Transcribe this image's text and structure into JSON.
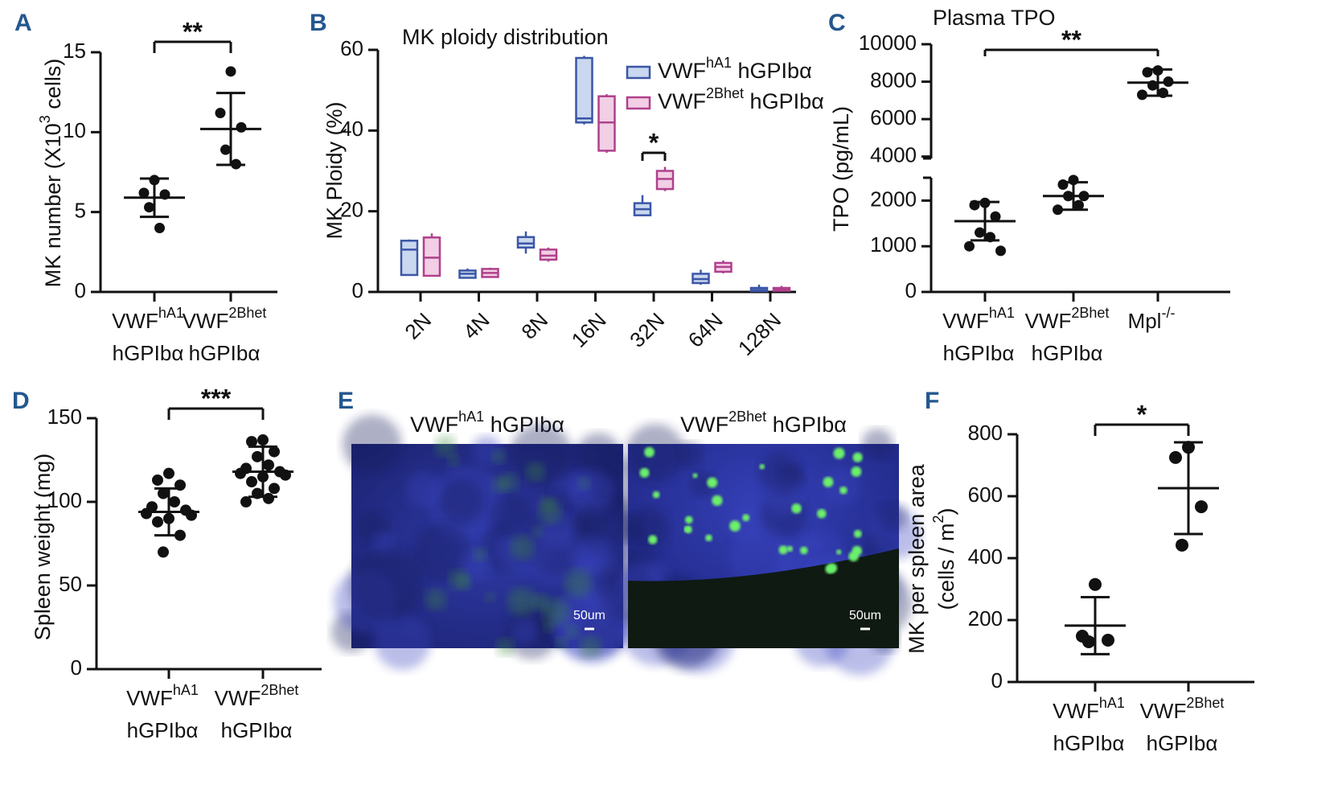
{
  "chart_data": [
    {
      "type": "dot",
      "panel": "A",
      "ylabel": [
        [
          "MK number (X10",
          "3",
          " cells)"
        ]
      ],
      "categories": [
        [
          [
            "VWF",
            "hA1"
          ],
          [
            "hGPIbα"
          ]
        ],
        [
          [
            "VWF",
            "2Bhet"
          ],
          [
            "hGPIbα"
          ]
        ]
      ],
      "groups": [
        {
          "points": [
            7.0,
            6.2,
            6.1,
            5.3,
            4.0
          ],
          "mean": 5.9,
          "sd": 1.2
        },
        {
          "points": [
            13.8,
            11.2,
            10.3,
            8.9,
            8.0
          ],
          "mean": 10.2,
          "sd": 2.25
        }
      ],
      "ylim": [
        0,
        15
      ],
      "yticks": [
        0,
        5,
        10,
        15
      ],
      "annotations": [
        "**"
      ],
      "color": "#111111"
    },
    {
      "type": "box",
      "panel": "B",
      "title": "MK ploidy distribution",
      "ylabel": [
        [
          "MK Ploidy (%)"
        ]
      ],
      "categories": [
        "2N",
        "4N",
        "8N",
        "16N",
        "32N",
        "64N",
        "128N"
      ],
      "series": [
        {
          "name": [
            "VWF",
            "hA1",
            " hGPIbα"
          ],
          "color": "#3b56a6",
          "fill": "#c9d7ef",
          "boxes": [
            {
              "min": 4,
              "q1": 4.2,
              "median": 10.5,
              "q3": 12.7,
              "max": 13
            },
            {
              "min": 3.4,
              "q1": 3.5,
              "median": 4.5,
              "q3": 5.3,
              "max": 5.8
            },
            {
              "min": 9.5,
              "q1": 11,
              "median": 12,
              "q3": 13.6,
              "max": 15
            },
            {
              "min": 41.5,
              "q1": 42,
              "median": 43,
              "q3": 58,
              "max": 58.5
            },
            {
              "min": 18.8,
              "q1": 19,
              "median": 20.5,
              "q3": 22,
              "max": 24
            },
            {
              "min": 1.8,
              "q1": 2.2,
              "median": 3.2,
              "q3": 4.5,
              "max": 5.5
            },
            {
              "min": 0,
              "q1": 0.2,
              "median": 0.5,
              "q3": 1,
              "max": 1.8
            }
          ]
        },
        {
          "name": [
            "VWF",
            "2Bhet",
            " hGPIbα"
          ],
          "color": "#b0408c",
          "fill": "#f2cfe4",
          "boxes": [
            {
              "min": 3.8,
              "q1": 4,
              "median": 8.5,
              "q3": 13.5,
              "max": 14.5
            },
            {
              "min": 3.5,
              "q1": 3.7,
              "median": 4.7,
              "q3": 5.7,
              "max": 6
            },
            {
              "min": 7.5,
              "q1": 8,
              "median": 9,
              "q3": 10.5,
              "max": 11
            },
            {
              "min": 34.5,
              "q1": 35,
              "median": 42,
              "q3": 48.5,
              "max": 49
            },
            {
              "min": 25,
              "q1": 25.5,
              "median": 28,
              "q3": 30,
              "max": 31
            },
            {
              "min": 4.6,
              "q1": 5,
              "median": 6.2,
              "q3": 7.2,
              "max": 7.8
            },
            {
              "min": 0.1,
              "q1": 0.3,
              "median": 0.6,
              "q3": 1,
              "max": 1.5
            }
          ]
        }
      ],
      "ylim": [
        0,
        60
      ],
      "yticks": [
        0,
        20,
        40,
        60
      ],
      "annotations": [
        "*"
      ]
    },
    {
      "type": "dot",
      "panel": "C",
      "title": "Plasma TPO",
      "ylabel": [
        [
          "TPO (pg/mL)"
        ]
      ],
      "categories": [
        [
          [
            "VWF",
            "hA1"
          ],
          [
            "hGPIbα"
          ]
        ],
        [
          [
            "VWF",
            "2Bhet"
          ],
          [
            "hGPIbα"
          ]
        ],
        [
          [
            "Mpl",
            "-/-"
          ]
        ]
      ],
      "groups": [
        {
          "points": [
            1950,
            1900,
            1650,
            1300,
            1200,
            1000,
            900
          ],
          "mean": 1550,
          "sd": 420
        },
        {
          "points": [
            2450,
            2350,
            2100,
            2100,
            1900,
            1800
          ],
          "mean": 2100,
          "sd": 300
        },
        {
          "points": [
            8600,
            8500,
            8000,
            7800,
            7400,
            7300
          ],
          "mean": 7950,
          "sd": 700
        }
      ],
      "ylim": [
        0,
        10000
      ],
      "axis_break": [
        2500,
        3900
      ],
      "yticks": [
        0,
        1000,
        2000,
        4000,
        6000,
        8000,
        10000
      ],
      "annotations": [
        "**"
      ],
      "color": "#111111"
    },
    {
      "type": "dot",
      "panel": "D",
      "ylabel": [
        [
          "Spleen weight (mg)"
        ]
      ],
      "categories": [
        [
          [
            "VWF",
            "hA1"
          ],
          [
            "hGPIbα"
          ]
        ],
        [
          [
            "VWF",
            "2Bhet"
          ],
          [
            "hGPIbα"
          ]
        ]
      ],
      "groups": [
        {
          "points": [
            117,
            113,
            110,
            105,
            100,
            97,
            95,
            93,
            92,
            90,
            88,
            80,
            70
          ],
          "mean": 94,
          "sd": 14
        },
        {
          "points": [
            137,
            136,
            130,
            127,
            122,
            120,
            118,
            117,
            116,
            115,
            112,
            108,
            105,
            102,
            100
          ],
          "mean": 118,
          "sd": 15
        }
      ],
      "ylim": [
        0,
        150
      ],
      "yticks": [
        0,
        50,
        100,
        150
      ],
      "annotations": [
        "***"
      ],
      "color": "#111111"
    },
    {
      "type": "image",
      "panel": "E",
      "images": [
        {
          "title": [
            "VWF",
            "hA1",
            " hGPIbα"
          ],
          "scale_bar": "50um"
        },
        {
          "title": [
            "VWF",
            "2Bhet",
            " hGPIbα"
          ],
          "scale_bar": "50um"
        }
      ]
    },
    {
      "type": "dot",
      "panel": "F",
      "ylabel": [
        [
          "MK per spleen area"
        ],
        [
          "(cells / m",
          "2",
          ")"
        ]
      ],
      "categories": [
        [
          [
            "VWF",
            "hA1"
          ],
          [
            "hGPIbα"
          ]
        ],
        [
          [
            "VWF",
            "2Bhet"
          ],
          [
            "hGPIbα"
          ]
        ]
      ],
      "groups": [
        {
          "points": [
            315,
            148,
            135,
            130
          ],
          "mean": 182,
          "sd": 92
        },
        {
          "points": [
            758,
            725,
            566,
            442
          ],
          "mean": 626,
          "sd": 148
        }
      ],
      "ylim": [
        0,
        800
      ],
      "yticks": [
        0,
        200,
        400,
        600,
        800
      ],
      "annotations": [
        "*"
      ],
      "color": "#111111"
    }
  ]
}
